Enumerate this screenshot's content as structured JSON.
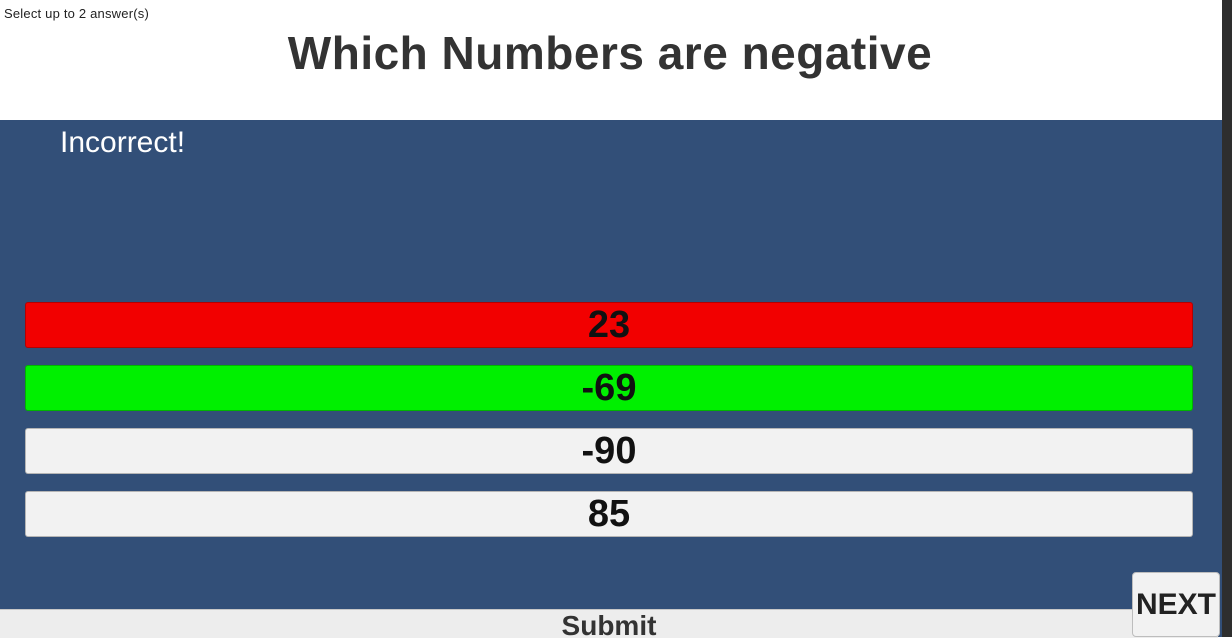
{
  "instruction": "Select up to 2 answer(s)",
  "question": "Which Numbers are negative",
  "feedback": "Incorrect!",
  "answers": [
    {
      "label": "23",
      "state": "wrong",
      "color": "#f20000"
    },
    {
      "label": "-69",
      "state": "correct",
      "color": "#00f000"
    },
    {
      "label": "-90",
      "state": "neutral",
      "color": "#f2f2f2"
    },
    {
      "label": "85",
      "state": "neutral",
      "color": "#f2f2f2"
    }
  ],
  "submit_label": "Submit",
  "next_label": "NEXT",
  "colors": {
    "panel": "#324f78",
    "wrong": "#f20000",
    "correct": "#00f000",
    "neutral": "#f2f2f2"
  }
}
